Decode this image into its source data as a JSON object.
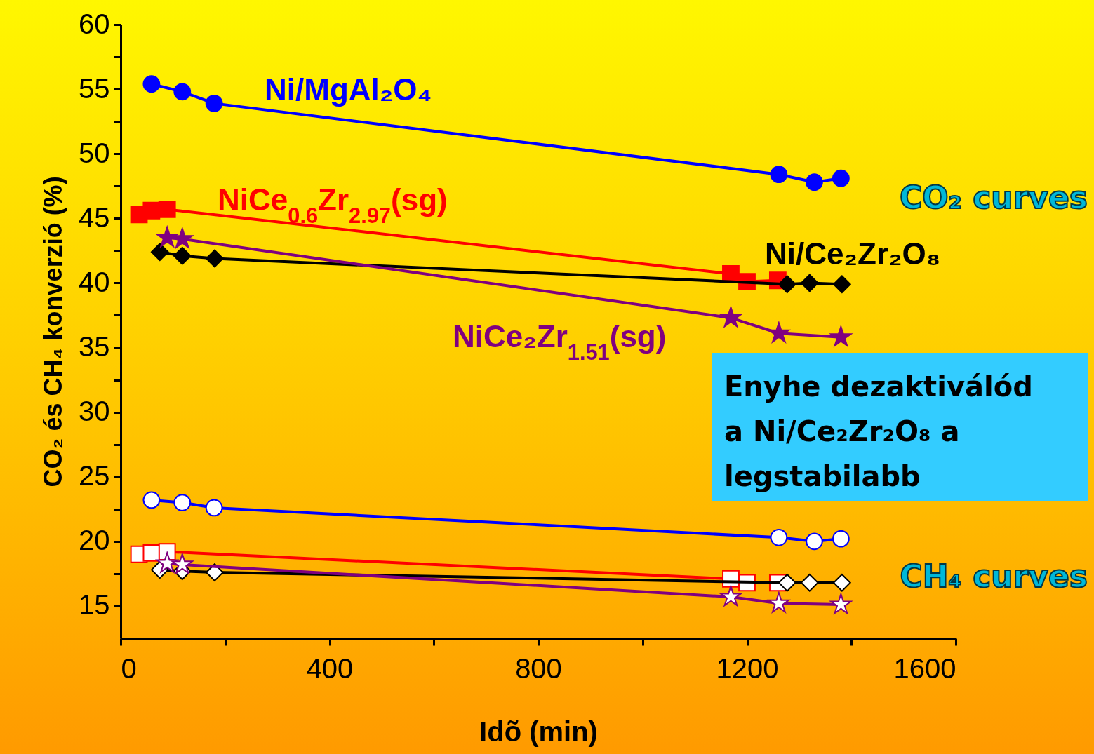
{
  "chart_data": {
    "type": "line",
    "xlabel": "Idõ (min)",
    "ylabel": "CO₂ és CH₄ konverzió (%)",
    "xlim": [
      0,
      1600
    ],
    "ylim": [
      12.5,
      60
    ],
    "xticks": [
      0,
      {
        "value": 200,
        "label": null
      },
      400,
      {
        "value": 600,
        "label": null
      },
      800,
      {
        "value": 1000,
        "label": null
      },
      1200,
      {
        "value": 1400,
        "label": null
      },
      1600
    ],
    "yticks": [
      15,
      {
        "value": 17.5,
        "label": null
      },
      20,
      {
        "value": 22.5,
        "label": null
      },
      25,
      {
        "value": 27.5,
        "label": null
      },
      30,
      {
        "value": 32.5,
        "label": null
      },
      35,
      {
        "value": 37.5,
        "label": null
      },
      40,
      {
        "value": 42.5,
        "label": null
      },
      45,
      {
        "value": 47.5,
        "label": null
      },
      50,
      {
        "value": 52.5,
        "label": null
      },
      55,
      {
        "value": 57.5,
        "label": null
      },
      60
    ],
    "grid": false,
    "line_style": "solid",
    "annotations": [
      "CO₂ curves",
      "CH₄ curves",
      "Enyhe dezaktiválód\na Ni/Ce₂Zr₂O₈ a\nlegstabilabb"
    ],
    "series": [
      {
        "name": "Ni/MgAl₂O₄",
        "color": "#0000ff",
        "marker": "circle",
        "x": [
          59,
          118,
          179,
          1261,
          1329,
          1380
        ],
        "values": [
          55.4,
          54.8,
          53.9,
          48.4,
          47.8,
          48.1
        ]
      },
      {
        "name": "NiCe$_{0.6}$Zr$_{2.97}$(sg)",
        "color": "#ff0000",
        "marker": "square",
        "x": [
          35,
          59,
          89,
          1169,
          1200,
          1259
        ],
        "values": [
          45.3,
          45.6,
          45.7,
          40.7,
          40.1,
          40.2
        ]
      },
      {
        "name": "Ni/Ce₂Zr₂O₈",
        "color": "#000000",
        "marker": "diamond",
        "x": [
          75,
          118,
          180,
          1277,
          1320,
          1382
        ],
        "values": [
          42.4,
          42.1,
          41.9,
          39.9,
          40.0,
          39.9
        ]
      },
      {
        "name": "NiCe₂Zr$_{1.51}$(sg)",
        "color": "#800080",
        "marker": "star",
        "x": [
          89,
          118,
          1169,
          1261,
          1380
        ],
        "values": [
          43.5,
          43.4,
          37.3,
          36.1,
          35.8
        ]
      },
      {
        "color": "#0000ff",
        "marker": "circle",
        "x": [
          59,
          118,
          179,
          1261,
          1329,
          1380
        ],
        "values": [
          23.2,
          23.0,
          22.6,
          20.3,
          20.0,
          20.2
        ]
      },
      {
        "color": "#ff0000",
        "marker": "square",
        "x": [
          35,
          59,
          89,
          1169,
          1200,
          1259
        ],
        "values": [
          19.0,
          19.1,
          19.2,
          17.1,
          16.8,
          16.8
        ]
      },
      {
        "color": "#000000",
        "marker": "diamond",
        "x": [
          75,
          118,
          180,
          1277,
          1320,
          1382
        ],
        "values": [
          17.8,
          17.7,
          17.6,
          16.8,
          16.8,
          16.8
        ]
      },
      {
        "color": "#800080",
        "marker": "star",
        "x": [
          89,
          118,
          1169,
          1261,
          1380
        ],
        "values": [
          18.3,
          18.2,
          15.7,
          15.2,
          15.1
        ]
      }
    ]
  }
}
